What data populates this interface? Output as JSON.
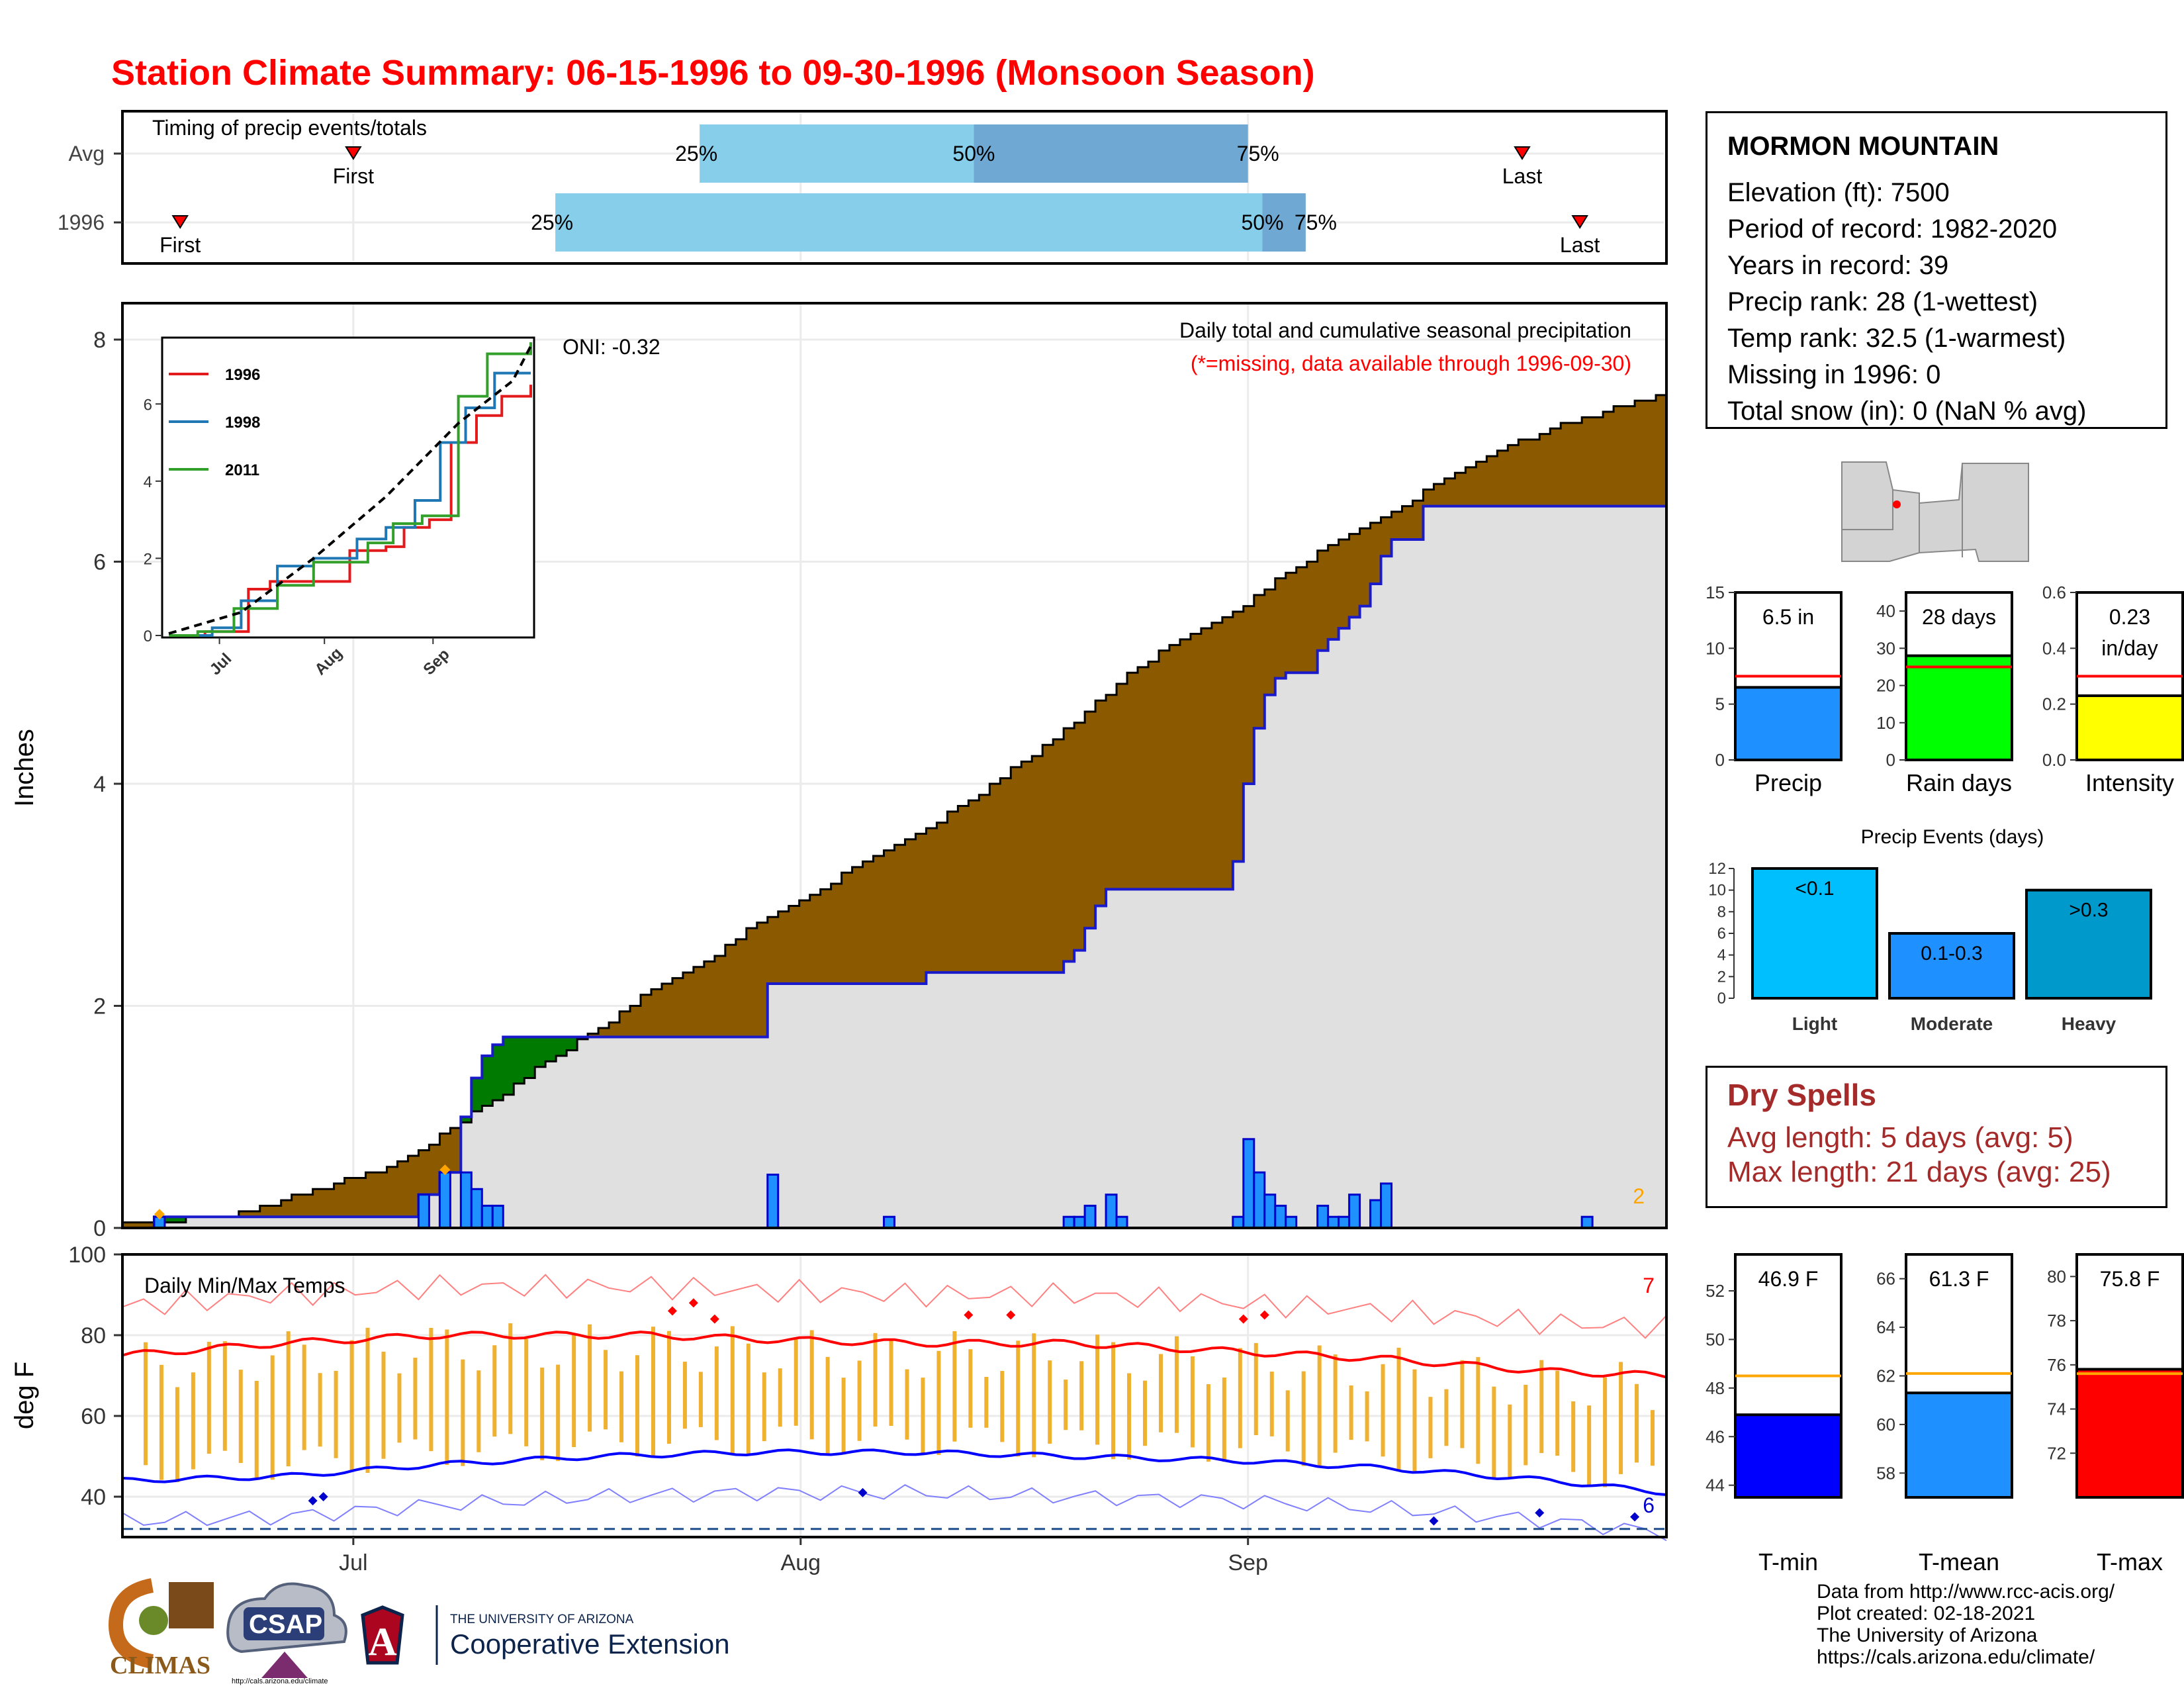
{
  "title": "Station Climate Summary: 06-15-1996 to 09-30-1996 (Monsoon Season)",
  "station": {
    "name": "MORMON MOUNTAIN",
    "lines": [
      "Elevation (ft): 7500",
      "Period of record: 1982-2020",
      "Years in record: 39",
      "Precip rank: 28 (1-wettest)",
      "Temp rank: 32.5 (1-warmest)",
      "Missing in 1996: 0",
      "Total snow (in): 0 (NaN % avg)"
    ]
  },
  "timing": {
    "title": "Timing of precip events/totals",
    "row_labels": [
      "Avg",
      "1996"
    ],
    "q25": "25%",
    "q50": "50%",
    "q75": "75%",
    "first": "First",
    "last": "Last"
  },
  "precip": {
    "ylabel": "Inches",
    "note1": "Daily total and cumulative seasonal precipitation",
    "note2": "(*=missing, data available through 1996-09-30)",
    "oni": "ONI: -0.32",
    "count_label": "2"
  },
  "inset": {
    "legend": [
      "1996",
      "1998",
      "2011"
    ],
    "xticks": [
      "Jul",
      "Aug",
      "Sep"
    ],
    "yticks": [
      "0",
      "2",
      "4",
      "6"
    ]
  },
  "temp": {
    "ylabel": "deg F",
    "title": "Daily Min/Max Temps",
    "count_hi": "7",
    "count_lo": "6"
  },
  "xaxis": {
    "ticks": [
      "Jul",
      "Aug",
      "Sep"
    ]
  },
  "bars": {
    "precip": {
      "label": "Precip",
      "value_text": "6.5 in"
    },
    "raindays": {
      "label": "Rain days",
      "value_text": "28 days"
    },
    "intensity": {
      "label": "Intensity",
      "value_text1": "0.23",
      "value_text2": "in/day"
    },
    "events_title": "Precip Events (days)",
    "events": [
      {
        "label": "Light",
        "text": "<0.1"
      },
      {
        "label": "Moderate",
        "text": "0.1-0.3"
      },
      {
        "label": "Heavy",
        "text": ">0.3"
      }
    ],
    "tmin": {
      "label": "T-min",
      "value_text": "46.9 F"
    },
    "tmean": {
      "label": "T-mean",
      "value_text": "61.3 F"
    },
    "tmax": {
      "label": "T-max",
      "value_text": "75.8 F"
    }
  },
  "dry_spells": {
    "title": "Dry Spells",
    "avg_length": "Avg length: 5 days (avg: 5)",
    "max_length": "Max length: 21 days (avg: 25)"
  },
  "credits": [
    "Data from http://www.rcc-acis.org/",
    "Plot created: 02-18-2021",
    "The University of Arizona",
    "https://cals.arizona.edu/climate/"
  ],
  "logos": {
    "climas": "CLIMAS",
    "csap": "CSAP",
    "csap_url": "http://cals.arizona.edu/climate",
    "ua_line1": "THE UNIVERSITY OF ARIZONA",
    "ua_line2": "Cooperative Extension"
  },
  "colors": {
    "title_red": "#ff0000",
    "brown": "#8b5a00",
    "green": "#007a00",
    "grey_fill": "#e0e0e0",
    "bar_blue": "#1e90ff",
    "light_blue": "#87ceeb",
    "mid_blue": "#6fa8d2",
    "orange": "#ffa500",
    "dry_red": "#a52a2a"
  },
  "chart_data": [
    {
      "type": "bar",
      "name": "timing",
      "series": [
        {
          "name": "Avg",
          "first": "1996-07-01",
          "q25": "1996-07-25",
          "q50": "1996-08-13",
          "q75": "1996-09-01",
          "last": "1996-09-20"
        },
        {
          "name": "1996",
          "first": "1996-06-19",
          "q25": "1996-07-15",
          "q50": "1996-09-02",
          "q75": "1996-09-05",
          "last": "1996-09-24"
        }
      ]
    },
    {
      "type": "line",
      "name": "cumulative_precip",
      "ylabel": "Inches",
      "ylim": [
        0,
        8
      ],
      "x_range": [
        "1996-06-15",
        "1996-09-30"
      ],
      "avg_cumulative": [
        [
          0,
          0.05
        ],
        [
          5,
          0.07
        ],
        [
          10,
          0.1
        ],
        [
          15,
          0.25
        ],
        [
          20,
          0.4
        ],
        [
          25,
          0.55
        ],
        [
          28,
          0.7
        ],
        [
          31,
          0.9
        ],
        [
          35,
          1.15
        ],
        [
          40,
          1.5
        ],
        [
          45,
          1.8
        ],
        [
          50,
          2.15
        ],
        [
          55,
          2.4
        ],
        [
          60,
          2.75
        ],
        [
          65,
          3.0
        ],
        [
          70,
          3.3
        ],
        [
          75,
          3.55
        ],
        [
          80,
          3.85
        ],
        [
          85,
          4.2
        ],
        [
          90,
          4.55
        ],
        [
          95,
          5.0
        ],
        [
          100,
          5.3
        ],
        [
          105,
          5.55
        ],
        [
          110,
          5.9
        ],
        [
          115,
          6.2
        ],
        [
          120,
          6.45
        ],
        [
          125,
          6.75
        ],
        [
          130,
          7.0
        ],
        [
          135,
          7.2
        ],
        [
          140,
          7.35
        ],
        [
          146,
          7.5
        ]
      ],
      "cum_1996": [
        [
          0,
          0
        ],
        [
          3,
          0.1
        ],
        [
          27,
          0.1
        ],
        [
          28,
          0.3
        ],
        [
          29,
          0.3
        ],
        [
          30,
          0.5
        ],
        [
          31,
          0.5
        ],
        [
          32,
          1.0
        ],
        [
          33,
          1.35
        ],
        [
          34,
          1.55
        ],
        [
          35,
          1.65
        ],
        [
          36,
          1.72
        ],
        [
          60,
          1.72
        ],
        [
          61,
          2.2
        ],
        [
          75,
          2.2
        ],
        [
          76,
          2.3
        ],
        [
          88,
          2.3
        ],
        [
          89,
          2.4
        ],
        [
          90,
          2.5
        ],
        [
          91,
          2.7
        ],
        [
          92,
          2.9
        ],
        [
          93,
          3.05
        ],
        [
          104,
          3.05
        ],
        [
          105,
          3.3
        ],
        [
          106,
          4.0
        ],
        [
          107,
          4.5
        ],
        [
          108,
          4.8
        ],
        [
          109,
          4.95
        ],
        [
          110,
          5.0
        ],
        [
          112,
          5.0
        ],
        [
          113,
          5.2
        ],
        [
          114,
          5.3
        ],
        [
          115,
          5.4
        ],
        [
          116,
          5.5
        ],
        [
          117,
          5.6
        ],
        [
          118,
          5.8
        ],
        [
          119,
          6.05
        ],
        [
          120,
          6.2
        ],
        [
          122,
          6.2
        ],
        [
          123,
          6.5
        ],
        [
          146,
          6.5
        ]
      ],
      "daily_1996": [
        [
          3,
          0.1
        ],
        [
          28,
          0.3
        ],
        [
          30,
          0.5
        ],
        [
          32,
          0.5
        ],
        [
          33,
          0.35
        ],
        [
          34,
          0.2
        ],
        [
          35,
          0.2
        ],
        [
          61,
          0.48
        ],
        [
          72,
          0.1
        ],
        [
          89,
          0.1
        ],
        [
          90,
          0.1
        ],
        [
          91,
          0.2
        ],
        [
          93,
          0.3
        ],
        [
          94,
          0.1
        ],
        [
          105,
          0.1
        ],
        [
          106,
          0.8
        ],
        [
          107,
          0.5
        ],
        [
          108,
          0.3
        ],
        [
          109,
          0.2
        ],
        [
          110,
          0.1
        ],
        [
          113,
          0.2
        ],
        [
          114,
          0.1
        ],
        [
          115,
          0.1
        ],
        [
          116,
          0.3
        ],
        [
          118,
          0.25
        ],
        [
          119,
          0.4
        ],
        [
          138,
          0.1
        ]
      ]
    },
    {
      "type": "line",
      "name": "inset_cumulative",
      "ylim": [
        0,
        8
      ],
      "series": [
        {
          "name": "1996",
          "points": [
            [
              0,
              0
            ],
            [
              10,
              0.1
            ],
            [
              22,
              1.2
            ],
            [
              28,
              1.4
            ],
            [
              38,
              1.4
            ],
            [
              50,
              2.2
            ],
            [
              60,
              2.3
            ],
            [
              65,
              2.8
            ],
            [
              72,
              3.0
            ],
            [
              78,
              5.0
            ],
            [
              85,
              5.7
            ],
            [
              92,
              6.2
            ],
            [
              100,
              6.5
            ]
          ]
        },
        {
          "name": "1998",
          "points": [
            [
              0,
              0
            ],
            [
              12,
              0.2
            ],
            [
              20,
              0.9
            ],
            [
              30,
              1.8
            ],
            [
              40,
              2.0
            ],
            [
              52,
              2.5
            ],
            [
              60,
              2.8
            ],
            [
              68,
              3.5
            ],
            [
              75,
              5.0
            ],
            [
              82,
              5.9
            ],
            [
              90,
              6.8
            ],
            [
              100,
              6.8
            ]
          ]
        },
        {
          "name": "2011",
          "points": [
            [
              0,
              0
            ],
            [
              8,
              0.1
            ],
            [
              18,
              0.7
            ],
            [
              30,
              1.3
            ],
            [
              40,
              1.9
            ],
            [
              55,
              2.4
            ],
            [
              62,
              2.9
            ],
            [
              70,
              3.1
            ],
            [
              80,
              6.2
            ],
            [
              88,
              7.3
            ],
            [
              100,
              7.6
            ]
          ]
        },
        {
          "name": "avg",
          "points": [
            [
              0,
              0.05
            ],
            [
              20,
              0.6
            ],
            [
              40,
              2.0
            ],
            [
              60,
              3.6
            ],
            [
              80,
              5.5
            ],
            [
              95,
              6.6
            ],
            [
              100,
              7.5
            ]
          ]
        }
      ]
    },
    {
      "type": "line",
      "name": "daily_temps",
      "ylabel": "deg F",
      "ylim": [
        30,
        100
      ],
      "normal_max": [
        [
          0,
          75
        ],
        [
          15,
          78
        ],
        [
          30,
          80
        ],
        [
          50,
          80
        ],
        [
          60,
          79
        ],
        [
          75,
          78
        ],
        [
          90,
          78
        ],
        [
          105,
          76
        ],
        [
          120,
          74
        ],
        [
          135,
          71
        ],
        [
          146,
          70
        ]
      ],
      "normal_min": [
        [
          0,
          44
        ],
        [
          15,
          45
        ],
        [
          30,
          48
        ],
        [
          45,
          50
        ],
        [
          60,
          51
        ],
        [
          75,
          51
        ],
        [
          90,
          50
        ],
        [
          105,
          49
        ],
        [
          120,
          47
        ],
        [
          135,
          44
        ],
        [
          146,
          41
        ]
      ],
      "freeze_line": 32
    },
    {
      "type": "bar",
      "name": "summary_precip",
      "categories": [
        "Precip",
        "Rain days",
        "Intensity"
      ],
      "values": [
        6.5,
        28,
        0.23
      ],
      "averages": [
        7.5,
        25,
        0.3
      ],
      "ylims": [
        [
          0,
          15
        ],
        [
          0,
          45
        ],
        [
          0,
          0.6
        ]
      ]
    },
    {
      "type": "bar",
      "name": "precip_events",
      "title": "Precip Events (days)",
      "categories": [
        "Light",
        "Moderate",
        "Heavy"
      ],
      "values": [
        12,
        6,
        10
      ],
      "ylim": [
        0,
        12
      ]
    },
    {
      "type": "bar",
      "name": "summary_temps",
      "categories": [
        "T-min",
        "T-mean",
        "T-max"
      ],
      "values": [
        46.9,
        61.3,
        75.8
      ],
      "averages": [
        48.5,
        62.1,
        75.6
      ],
      "ylims": [
        [
          43.5,
          53.5
        ],
        [
          57,
          67
        ],
        [
          70,
          81
        ]
      ]
    }
  ]
}
